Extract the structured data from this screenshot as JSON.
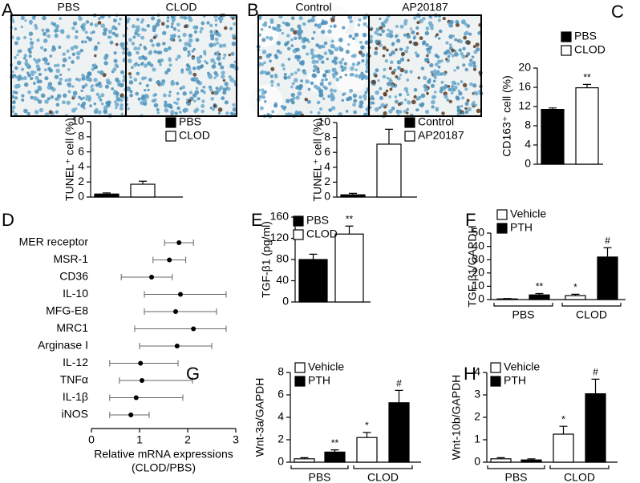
{
  "chart_data": [
    {
      "label": "A",
      "type": "bar",
      "image_labels": [
        "PBS",
        "CLOD"
      ],
      "ylabel": "TUNEL⁺ cell (%)",
      "ylim": [
        0,
        10
      ],
      "yticks": [
        0,
        2,
        4,
        6,
        8,
        10
      ],
      "series": [
        {
          "name": "PBS",
          "color": "#000000",
          "values": [
            0.4
          ],
          "errors": [
            0.15
          ]
        },
        {
          "name": "CLOD",
          "color": "#ffffff",
          "values": [
            1.7
          ],
          "errors": [
            0.4
          ]
        }
      ]
    },
    {
      "label": "B",
      "type": "bar",
      "image_labels": [
        "Control",
        "AP20187"
      ],
      "ylabel": "TUNEL⁺ cell (%)",
      "ylim": [
        0,
        10
      ],
      "yticks": [
        0,
        2,
        4,
        6,
        8,
        10
      ],
      "series": [
        {
          "name": "Control",
          "color": "#000000",
          "values": [
            0.3
          ],
          "errors": [
            0.2
          ]
        },
        {
          "name": "AP20187",
          "color": "#ffffff",
          "values": [
            7.1
          ],
          "errors": [
            2.0
          ]
        }
      ]
    },
    {
      "label": "C",
      "type": "bar",
      "ylabel": "CD163⁺ cell (%)",
      "ylim": [
        0,
        20
      ],
      "yticks": [
        0,
        4,
        8,
        12,
        16,
        20
      ],
      "series": [
        {
          "name": "PBS",
          "color": "#000000",
          "values": [
            11.4
          ],
          "errors": [
            0.3
          ],
          "significance": [
            null
          ]
        },
        {
          "name": "CLOD",
          "color": "#ffffff",
          "values": [
            15.9
          ],
          "errors": [
            0.7
          ],
          "significance": [
            "**"
          ]
        }
      ]
    },
    {
      "label": "D",
      "type": "dot",
      "xlabel": [
        "Relative mRNA expressions",
        "(CLOD/PBS)"
      ],
      "categories": [
        "MER receptor",
        "MSR-1",
        "CD36",
        "IL-10",
        "MFG-E8",
        "MRC1",
        "Arginase I",
        "IL-12",
        "TNFα",
        "IL-1β",
        "iNOS"
      ],
      "values": [
        1.82,
        1.62,
        1.25,
        1.85,
        1.75,
        2.12,
        1.78,
        1.02,
        1.05,
        0.93,
        0.82
      ],
      "lower": [
        1.52,
        1.28,
        0.62,
        1.1,
        1.1,
        0.9,
        1.0,
        0.38,
        0.58,
        0.38,
        0.38
      ],
      "upper": [
        2.12,
        1.96,
        1.68,
        2.8,
        2.6,
        2.8,
        2.5,
        1.8,
        2.1,
        1.9,
        1.2
      ],
      "xlim": [
        0,
        3
      ],
      "xticks": [
        0,
        1,
        2,
        3
      ]
    },
    {
      "label": "E",
      "type": "bar",
      "ylabel": "TGF-β1 (pg/ml)",
      "ylim": [
        0,
        160
      ],
      "yticks": [
        0,
        40,
        80,
        120,
        160
      ],
      "series": [
        {
          "name": "PBS",
          "color": "#000000",
          "values": [
            80
          ],
          "errors": [
            10
          ],
          "significance": [
            null
          ]
        },
        {
          "name": "CLOD",
          "color": "#ffffff",
          "values": [
            128
          ],
          "errors": [
            15
          ],
          "significance": [
            "**"
          ]
        }
      ]
    },
    {
      "label": "F",
      "type": "bar",
      "ylabel": "TGF-β1/GAPDH",
      "categories": [
        "PBS",
        "CLOD"
      ],
      "ylim": [
        0,
        50
      ],
      "yticks": [
        0,
        10,
        20,
        30,
        40,
        50
      ],
      "series": [
        {
          "name": "Vehicle",
          "color": "#ffffff",
          "values": [
            0.5,
            3
          ],
          "errors": [
            0.3,
            1
          ],
          "significance": [
            null,
            "*"
          ]
        },
        {
          "name": "PTH",
          "color": "#000000",
          "values": [
            3.5,
            32
          ],
          "errors": [
            1,
            7
          ],
          "significance": [
            "**",
            "#"
          ]
        }
      ]
    },
    {
      "label": "G",
      "type": "bar",
      "ylabel": "Wnt-3a/GAPDH",
      "categories": [
        "PBS",
        "CLOD"
      ],
      "ylim": [
        0,
        8
      ],
      "yticks": [
        0,
        2,
        4,
        6,
        8
      ],
      "series": [
        {
          "name": "Vehicle",
          "color": "#ffffff",
          "values": [
            0.3,
            2.2
          ],
          "errors": [
            0.1,
            0.45
          ],
          "significance": [
            null,
            "*"
          ]
        },
        {
          "name": "PTH",
          "color": "#000000",
          "values": [
            0.9,
            5.3
          ],
          "errors": [
            0.2,
            1.1
          ],
          "significance": [
            "**",
            "#"
          ]
        }
      ]
    },
    {
      "label": "H",
      "type": "bar",
      "ylabel": "Wnt-10b/GAPDH",
      "categories": [
        "PBS",
        "CLOD"
      ],
      "ylim": [
        0,
        4
      ],
      "yticks": [
        0,
        1,
        2,
        3,
        4
      ],
      "series": [
        {
          "name": "Vehicle",
          "color": "#ffffff",
          "values": [
            0.15,
            1.25
          ],
          "errors": [
            0.05,
            0.35
          ],
          "significance": [
            null,
            "*"
          ]
        },
        {
          "name": "PTH",
          "color": "#000000",
          "values": [
            0.1,
            3.05
          ],
          "errors": [
            0.05,
            0.65
          ],
          "significance": [
            null,
            "#"
          ]
        }
      ]
    }
  ]
}
